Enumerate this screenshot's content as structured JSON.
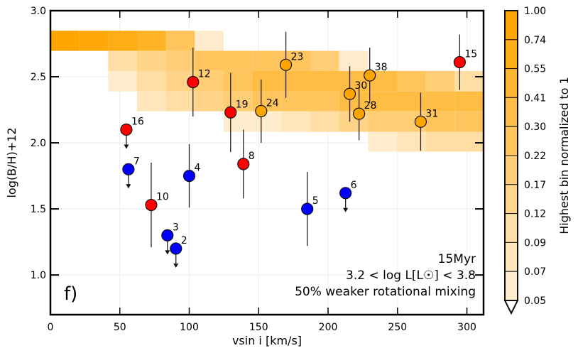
{
  "chart_data": {
    "type": "scatter",
    "xlabel": "vsin i [km/s]",
    "ylabel": "log(B/H)+12",
    "xlim": [
      0,
      312
    ],
    "ylim": [
      0.7,
      3.0
    ],
    "xticks": [
      "0",
      "50",
      "100",
      "150",
      "200",
      "250",
      "300"
    ],
    "xtick_values": [
      0,
      50,
      100,
      150,
      200,
      250,
      300
    ],
    "yticks": [
      "1.0",
      "1.5",
      "2.0",
      "2.5",
      "3.0"
    ],
    "ytick_values": [
      1.0,
      1.5,
      2.0,
      2.5,
      3.0
    ],
    "panel_label": "f)",
    "annotation": [
      "15Myr",
      "3.2 < log L[L☉] < 3.8",
      "50% weaker rotational mixing"
    ],
    "colors": {
      "red": "#ff0000",
      "blue": "#0000ff",
      "orange": "#ffa500"
    },
    "points": [
      {
        "label": "16",
        "x": 54.7,
        "y": 2.1,
        "err": 0,
        "color": "red",
        "upper_limit": true
      },
      {
        "label": "7",
        "x": 56.2,
        "y": 1.8,
        "err": 0,
        "color": "blue",
        "upper_limit": true
      },
      {
        "label": "12",
        "x": 102.7,
        "y": 2.46,
        "err": 0.26,
        "color": "red",
        "upper_limit": false
      },
      {
        "label": "19",
        "x": 129.8,
        "y": 2.23,
        "err": 0.3,
        "color": "red",
        "upper_limit": false
      },
      {
        "label": "24",
        "x": 151.8,
        "y": 2.24,
        "err": 0.24,
        "color": "orange",
        "upper_limit": false
      },
      {
        "label": "23",
        "x": 169.6,
        "y": 2.59,
        "err": 0.25,
        "color": "orange",
        "upper_limit": false
      },
      {
        "label": "30",
        "x": 215.6,
        "y": 2.37,
        "err": 0.21,
        "color": "orange",
        "upper_limit": false
      },
      {
        "label": "28",
        "x": 222.3,
        "y": 2.22,
        "err": 0.2,
        "color": "orange",
        "upper_limit": false
      },
      {
        "label": "38",
        "x": 230.0,
        "y": 2.51,
        "err": 0.21,
        "color": "orange",
        "upper_limit": false
      },
      {
        "label": "31",
        "x": 266.7,
        "y": 2.16,
        "err": 0.22,
        "color": "orange",
        "upper_limit": false
      },
      {
        "label": "15",
        "x": 294.8,
        "y": 2.61,
        "err": 0.21,
        "color": "red",
        "upper_limit": false
      },
      {
        "label": "8",
        "x": 139.0,
        "y": 1.84,
        "err": 0.26,
        "color": "red",
        "upper_limit": false
      },
      {
        "label": "4",
        "x": 100.0,
        "y": 1.75,
        "err": 0.24,
        "color": "blue",
        "upper_limit": false
      },
      {
        "label": "10",
        "x": 72.6,
        "y": 1.53,
        "err": 0.32,
        "color": "red",
        "upper_limit": false
      },
      {
        "label": "3",
        "x": 84.3,
        "y": 1.3,
        "err": 0,
        "color": "blue",
        "upper_limit": true
      },
      {
        "label": "2",
        "x": 90.4,
        "y": 1.2,
        "err": 0,
        "color": "blue",
        "upper_limit": true
      },
      {
        "label": "5",
        "x": 185.0,
        "y": 1.5,
        "err": 0.28,
        "color": "blue",
        "upper_limit": false
      },
      {
        "label": "6",
        "x": 212.6,
        "y": 1.62,
        "err": 0,
        "color": "blue",
        "upper_limit": true
      }
    ],
    "heatmap": {
      "x_bin_width": 20.8,
      "y_edges": [
        2.848,
        2.696,
        2.544,
        2.389,
        2.239,
        2.083,
        1.933
      ],
      "rows": [
        [
          1.0,
          0.9,
          0.74,
          0.6,
          0.3,
          0.07,
          0,
          0,
          0,
          0,
          0,
          0,
          0,
          0,
          0
        ],
        [
          0,
          0,
          0.12,
          0.17,
          0.22,
          0.3,
          0.3,
          0.3,
          0.3,
          0.22,
          0.07,
          0,
          0,
          0,
          0
        ],
        [
          0,
          0,
          0.07,
          0.12,
          0.17,
          0.22,
          0.3,
          0.41,
          0.41,
          0.41,
          0.41,
          0.41,
          0.3,
          0.22,
          0.12
        ],
        [
          0,
          0,
          0,
          0.09,
          0.12,
          0.17,
          0.22,
          0.3,
          0.3,
          0.3,
          0.41,
          0.41,
          0.41,
          0.41,
          0.41
        ],
        [
          0,
          0,
          0,
          0,
          0,
          0,
          0.07,
          0.07,
          0.09,
          0.12,
          0.17,
          0.22,
          0.22,
          0.3,
          0.3
        ],
        [
          0,
          0,
          0,
          0,
          0,
          0,
          0,
          0,
          0,
          0,
          0,
          0.07,
          0.09,
          0.12,
          0.12
        ]
      ]
    },
    "colorbar": {
      "label": "Highest bin normalized to 1",
      "ticks": [
        "1.00",
        "0.74",
        "0.55",
        "0.41",
        "0.30",
        "0.22",
        "0.17",
        "0.12",
        "0.09",
        "0.07",
        "0.05"
      ]
    }
  }
}
